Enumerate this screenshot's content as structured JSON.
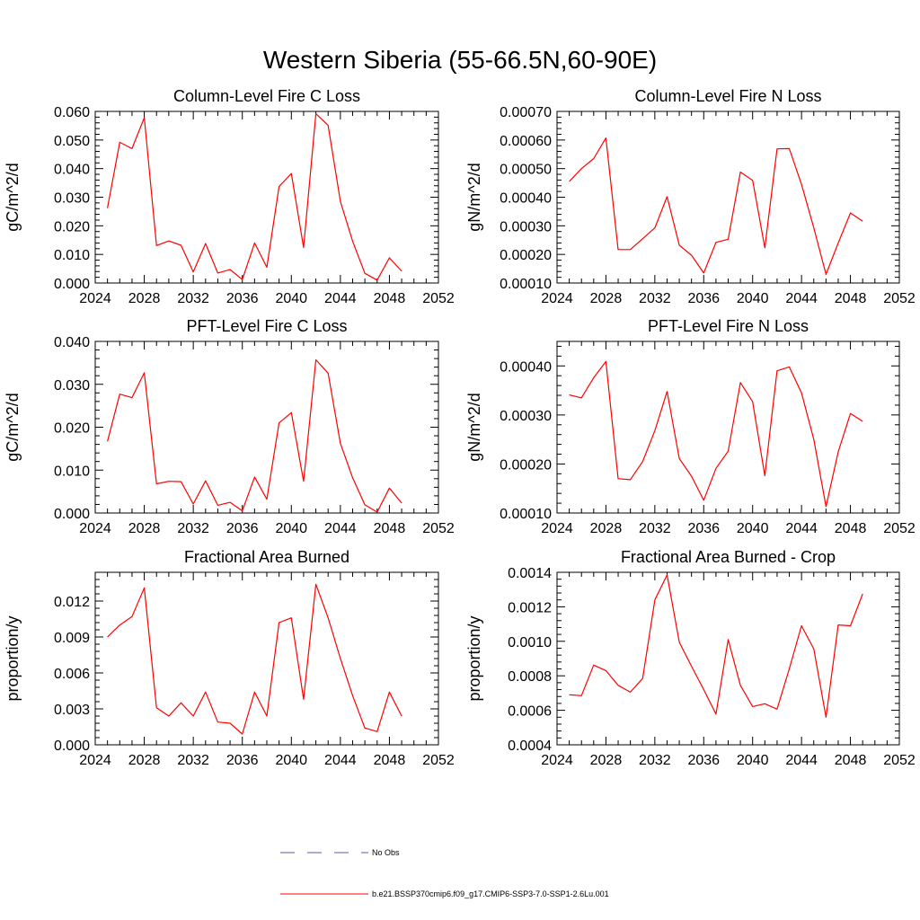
{
  "figure": {
    "title": "Western Siberia (55-66.5N,60-90E)",
    "legend": [
      {
        "label": "No Obs",
        "color": "#5a5aa0",
        "style": "dashed"
      },
      {
        "label": "b.e21.BSSP370cmip6.f09_g17.CMIP6-SSP3-7.0-SSP1-2.6Lu.001",
        "color": "#ff0000",
        "style": "solid"
      }
    ]
  },
  "chart_data": [
    {
      "type": "line",
      "title": "Column-Level Fire C Loss",
      "ylabel": "gC/m^2/d",
      "xlim": [
        2024,
        2052
      ],
      "xticks": [
        2024,
        2028,
        2032,
        2036,
        2040,
        2044,
        2048,
        2052
      ],
      "ylim": [
        0,
        0.06
      ],
      "yticks": [
        "0.000",
        "0.010",
        "0.020",
        "0.030",
        "0.040",
        "0.050",
        "0.060"
      ],
      "ytick_values": [
        0,
        0.01,
        0.02,
        0.03,
        0.04,
        0.05,
        0.06
      ],
      "series": [
        {
          "color": "#ff0000",
          "x": [
            2025,
            2026,
            2027,
            2028,
            2029,
            2030,
            2031,
            2032,
            2033,
            2034,
            2035,
            2036,
            2037,
            2038,
            2039,
            2040,
            2041,
            2042,
            2043,
            2044,
            2045,
            2046,
            2047,
            2048,
            2049
          ],
          "values": [
            0.0262,
            0.0492,
            0.047,
            0.0578,
            0.0131,
            0.0147,
            0.0132,
            0.0039,
            0.0138,
            0.0035,
            0.0047,
            0.0012,
            0.014,
            0.0055,
            0.0337,
            0.0383,
            0.0124,
            0.0592,
            0.0551,
            0.0285,
            0.0146,
            0.0034,
            0.001,
            0.0088,
            0.0041
          ]
        }
      ]
    },
    {
      "type": "line",
      "title": "Column-Level Fire N Loss",
      "ylabel": "gN/m^2/d",
      "xlim": [
        2024,
        2052
      ],
      "xticks": [
        2024,
        2028,
        2032,
        2036,
        2040,
        2044,
        2048,
        2052
      ],
      "ylim": [
        0.0001,
        0.0007
      ],
      "yticks": [
        "0.00010",
        "0.00020",
        "0.00030",
        "0.00040",
        "0.00050",
        "0.00060",
        "0.00070"
      ],
      "ytick_values": [
        0.0001,
        0.0002,
        0.0003,
        0.0004,
        0.0005,
        0.0006,
        0.0007
      ],
      "series": [
        {
          "color": "#ff0000",
          "x": [
            2025,
            2026,
            2027,
            2028,
            2029,
            2030,
            2031,
            2032,
            2033,
            2034,
            2035,
            2036,
            2037,
            2038,
            2039,
            2040,
            2041,
            2042,
            2043,
            2044,
            2045,
            2046,
            2047,
            2048,
            2049
          ],
          "values": [
            0.000455,
            0.0005,
            0.000535,
            0.000607,
            0.000217,
            0.000217,
            0.000255,
            0.000293,
            0.000402,
            0.000232,
            0.000197,
            0.000135,
            0.000242,
            0.000253,
            0.000488,
            0.000459,
            0.000223,
            0.000569,
            0.00057,
            0.000445,
            0.000293,
            0.00013,
            0.00024,
            0.000345,
            0.000316
          ]
        }
      ]
    },
    {
      "type": "line",
      "title": "PFT-Level Fire C Loss",
      "ylabel": "gC/m^2/d",
      "xlim": [
        2024,
        2052
      ],
      "xticks": [
        2024,
        2028,
        2032,
        2036,
        2040,
        2044,
        2048,
        2052
      ],
      "ylim": [
        0,
        0.04
      ],
      "yticks": [
        "0.000",
        "0.010",
        "0.020",
        "0.030",
        "0.040"
      ],
      "ytick_values": [
        0,
        0.01,
        0.02,
        0.03,
        0.04
      ],
      "series": [
        {
          "color": "#ff0000",
          "x": [
            2025,
            2026,
            2027,
            2028,
            2029,
            2030,
            2031,
            2032,
            2033,
            2034,
            2035,
            2036,
            2037,
            2038,
            2039,
            2040,
            2041,
            2042,
            2043,
            2044,
            2045,
            2046,
            2047,
            2048,
            2049
          ],
          "values": [
            0.0167,
            0.0277,
            0.0269,
            0.0327,
            0.0068,
            0.0074,
            0.0073,
            0.0021,
            0.0075,
            0.0018,
            0.0025,
            0.0005,
            0.0084,
            0.0032,
            0.021,
            0.0234,
            0.0074,
            0.0357,
            0.0326,
            0.0162,
            0.0082,
            0.0019,
            0.0002,
            0.0058,
            0.0023
          ]
        }
      ]
    },
    {
      "type": "line",
      "title": "PFT-Level Fire N Loss",
      "ylabel": "gN/m^2/d",
      "xlim": [
        2024,
        2052
      ],
      "xticks": [
        2024,
        2028,
        2032,
        2036,
        2040,
        2044,
        2048,
        2052
      ],
      "ylim": [
        0.0001,
        0.00045
      ],
      "yticks": [
        "0.00010",
        "0.00020",
        "0.00030",
        "0.00040"
      ],
      "ytick_values": [
        0.0001,
        0.0002,
        0.0003,
        0.0004
      ],
      "series": [
        {
          "color": "#ff0000",
          "x": [
            2025,
            2026,
            2027,
            2028,
            2029,
            2030,
            2031,
            2032,
            2033,
            2034,
            2035,
            2036,
            2037,
            2038,
            2039,
            2040,
            2041,
            2042,
            2043,
            2044,
            2045,
            2046,
            2047,
            2048,
            2049
          ],
          "values": [
            0.000341,
            0.000335,
            0.000376,
            0.000409,
            0.00017,
            0.000168,
            0.000205,
            0.000268,
            0.000348,
            0.000211,
            0.000175,
            0.000126,
            0.000191,
            0.000226,
            0.000366,
            0.000327,
            0.000176,
            0.00039,
            0.000398,
            0.000345,
            0.00025,
            0.000113,
            0.000225,
            0.000303,
            0.000287
          ]
        }
      ]
    },
    {
      "type": "line",
      "title": "Fractional Area Burned",
      "ylabel": "proportion/y",
      "xlim": [
        2024,
        2052
      ],
      "xticks": [
        2024,
        2028,
        2032,
        2036,
        2040,
        2044,
        2048,
        2052
      ],
      "ylim": [
        0,
        0.0144
      ],
      "yticks": [
        "0.000",
        "0.003",
        "0.006",
        "0.009",
        "0.012"
      ],
      "ytick_values": [
        0,
        0.003,
        0.006,
        0.009,
        0.012
      ],
      "series": [
        {
          "color": "#ff0000",
          "x": [
            2025,
            2026,
            2027,
            2028,
            2029,
            2030,
            2031,
            2032,
            2033,
            2034,
            2035,
            2036,
            2037,
            2038,
            2039,
            2040,
            2041,
            2042,
            2043,
            2044,
            2045,
            2046,
            2047,
            2048,
            2049
          ],
          "values": [
            0.009,
            0.01,
            0.0107,
            0.0131,
            0.0031,
            0.0024,
            0.0035,
            0.0024,
            0.0044,
            0.0019,
            0.0018,
            0.0009,
            0.0044,
            0.0024,
            0.0102,
            0.0106,
            0.0038,
            0.0134,
            0.0106,
            0.0072,
            0.0041,
            0.0014,
            0.0011,
            0.0044,
            0.0024
          ]
        }
      ]
    },
    {
      "type": "line",
      "title": "Fractional Area Burned - Crop",
      "ylabel": "proportion/y",
      "xlim": [
        2024,
        2052
      ],
      "xticks": [
        2024,
        2028,
        2032,
        2036,
        2040,
        2044,
        2048,
        2052
      ],
      "ylim": [
        0.0004,
        0.0014
      ],
      "yticks": [
        "0.0004",
        "0.0006",
        "0.0008",
        "0.0010",
        "0.0012",
        "0.0014"
      ],
      "ytick_values": [
        0.0004,
        0.0006,
        0.0008,
        0.001,
        0.0012,
        0.0014
      ],
      "series": [
        {
          "color": "#ff0000",
          "x": [
            2025,
            2026,
            2027,
            2028,
            2029,
            2030,
            2031,
            2032,
            2033,
            2034,
            2035,
            2036,
            2037,
            2038,
            2039,
            2040,
            2041,
            2042,
            2043,
            2044,
            2045,
            2046,
            2047,
            2048,
            2049
          ],
          "values": [
            0.00069,
            0.000685,
            0.000862,
            0.00083,
            0.000745,
            0.000705,
            0.000785,
            0.00124,
            0.001385,
            0.000995,
            0.000855,
            0.00072,
            0.000578,
            0.00101,
            0.000745,
            0.000622,
            0.000638,
            0.000607,
            0.00084,
            0.00109,
            0.000955,
            0.00056,
            0.001095,
            0.00109,
            0.001275
          ]
        }
      ]
    }
  ]
}
